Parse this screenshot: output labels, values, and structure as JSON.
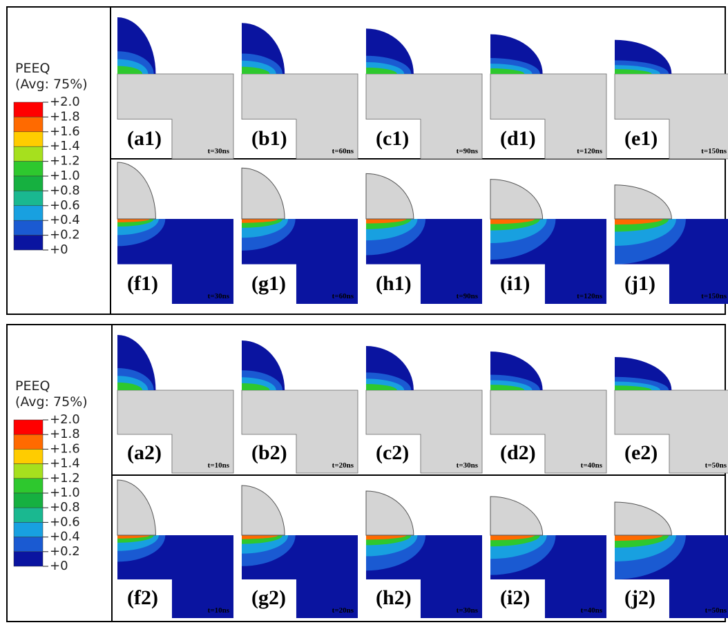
{
  "blocks": [
    {
      "legend": {
        "title": "PEEQ",
        "subtitle": "(Avg: 75%)",
        "labels": [
          "+2.0",
          "+1.8",
          "+1.6",
          "+1.4",
          "+1.2",
          "+1.0",
          "+0.8",
          "+0.6",
          "+0.4",
          "+0.2",
          "+0"
        ]
      },
      "rows": [
        [
          {
            "label": "(a1)",
            "time": "t=30ns"
          },
          {
            "label": "(b1)",
            "time": "t=60ns"
          },
          {
            "label": "(c1)",
            "time": "t=90ns"
          },
          {
            "label": "(d1)",
            "time": "t=120ns"
          },
          {
            "label": "(e1)",
            "time": "t=150ns"
          }
        ],
        [
          {
            "label": "(f1)",
            "time": "t=30ns"
          },
          {
            "label": "(g1)",
            "time": "t=60ns"
          },
          {
            "label": "(h1)",
            "time": "t=90ns"
          },
          {
            "label": "(i1)",
            "time": "t=120ns"
          },
          {
            "label": "(j1)",
            "time": "t=150ns"
          }
        ]
      ]
    },
    {
      "legend": {
        "title": "PEEQ",
        "subtitle": "(Avg: 75%)",
        "labels": [
          "+2.0",
          "+1.8",
          "+1.6",
          "+1.4",
          "+1.2",
          "+1.0",
          "+0.8",
          "+0.6",
          "+0.4",
          "+0.2",
          "+0"
        ]
      },
      "rows": [
        [
          {
            "label": "(a2)",
            "time": "t=10ns"
          },
          {
            "label": "(b2)",
            "time": "t=20ns"
          },
          {
            "label": "(c2)",
            "time": "t=30ns"
          },
          {
            "label": "(d2)",
            "time": "t=40ns"
          },
          {
            "label": "(e2)",
            "time": "t=50ns"
          }
        ],
        [
          {
            "label": "(f2)",
            "time": "t=10ns"
          },
          {
            "label": "(g2)",
            "time": "t=20ns"
          },
          {
            "label": "(h2)",
            "time": "t=30ns"
          },
          {
            "label": "(i2)",
            "time": "t=40ns"
          },
          {
            "label": "(j2)",
            "time": "t=50ns"
          }
        ]
      ]
    }
  ]
}
